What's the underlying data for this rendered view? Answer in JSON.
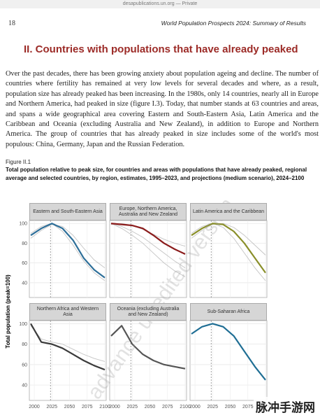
{
  "browser": {
    "url": "desapublications.un.org — Private"
  },
  "header": {
    "page_number": "18",
    "running_title": "World Population Prospects 2024: Summary of Results"
  },
  "section_title": "II. Countries with populations that have already peaked",
  "paragraph": "Over the past decades, there has been growing anxiety about population ageing and decline. The number of countries where fertility has remained at very low levels for several decades and where, as a result, population size has already peaked has been increasing. In the 1980s, only 14 countries, nearly all in Europe and Northern America, had peaked in size (figure I.3). Today, that number stands at 63 countries and areas, and spans a wide geographical area covering Eastern and South-Eastern Asia, Latin America and the Caribbean and Oceania (excluding Australia and New Zealand), in addition to Europe and Northern America. The group of countries that has already peaked in size includes some of the world's most populous: China, Germany, Japan and the Russian Federation.",
  "figure": {
    "label": "Figure II.1",
    "caption": "Total population relative to peak size, for countries and areas with populations that have already peaked, regional average and selected countries, by region, estimates, 1995–2023, and projections (medium scenario), 2024–2100",
    "y_label": "Total population (peak=100)",
    "x": [
      1995,
      2010,
      2025,
      2040,
      2055,
      2070,
      2085,
      2100
    ],
    "xlim": [
      1995,
      2100
    ],
    "xticks": [
      2000,
      2025,
      2050,
      2075,
      2100
    ],
    "ylim": [
      25,
      103
    ],
    "yticks": [
      40,
      60,
      80,
      100
    ],
    "projection_start": 2023,
    "grid": true,
    "panels": [
      {
        "title": "Eastern and South-Eastern Asia",
        "series": [
          {
            "color": "#c4c4c4",
            "values": [
              85,
              93,
              99,
              97,
              88,
              75,
              63,
              55
            ]
          },
          {
            "color": "#c4c4c4",
            "values": [
              90,
              97,
              100,
              92,
              78,
              62,
              50,
              42
            ]
          },
          {
            "color": "#2e6f99",
            "values": [
              88,
              95,
              100,
              95,
              83,
              65,
              53,
              45
            ]
          }
        ]
      },
      {
        "title": "Europe, Northern America, Australia and New Zealand",
        "series": [
          {
            "color": "#c4c4c4",
            "values": [
              100,
              97,
              92,
              86,
              78,
              70,
              62,
              55
            ]
          },
          {
            "color": "#c4c4c4",
            "values": [
              99,
              100,
              98,
              94,
              89,
              84,
              80,
              77
            ]
          },
          {
            "color": "#c4c4c4",
            "values": [
              100,
              95,
              88,
              80,
              70,
              60,
              52,
              46
            ]
          },
          {
            "color": "#8b1c1c",
            "values": [
              100,
              99,
              98,
              95,
              88,
              80,
              74,
              69
            ]
          }
        ]
      },
      {
        "title": "Latin America and the Caribbean",
        "series": [
          {
            "color": "#c4c4c4",
            "values": [
              90,
              97,
              100,
              96,
              85,
              70,
              55,
              42
            ]
          },
          {
            "color": "#c4c4c4",
            "values": [
              85,
              93,
              99,
              100,
              96,
              88,
              78,
              68
            ]
          },
          {
            "color": "#8a8f2a",
            "values": [
              88,
              95,
              100,
              99,
              92,
              80,
              65,
              50
            ]
          }
        ]
      },
      {
        "title": "Northern Africa and Western Asia",
        "series": [
          {
            "color": "#c4c4c4",
            "values": [
              98,
              85,
              82,
              80,
              75,
              70,
              66,
              63
            ]
          },
          {
            "color": "#3a3a3a",
            "values": [
              100,
              82,
              80,
              76,
              70,
              64,
              59,
              55
            ]
          }
        ]
      },
      {
        "title": "Oceania (excluding Australia and New Zealand)",
        "series": [
          {
            "color": "#555555",
            "values": [
              88,
              98,
              80,
              70,
              64,
              60,
              58,
              56
            ]
          }
        ]
      },
      {
        "title": "Sub-Saharan Africa",
        "series": [
          {
            "color": "#1f6e94",
            "values": [
              90,
              97,
              100,
              97,
              88,
              73,
              58,
              45
            ]
          }
        ]
      }
    ]
  },
  "watermark": "advance unedited version",
  "logo": "脉冲手游网"
}
